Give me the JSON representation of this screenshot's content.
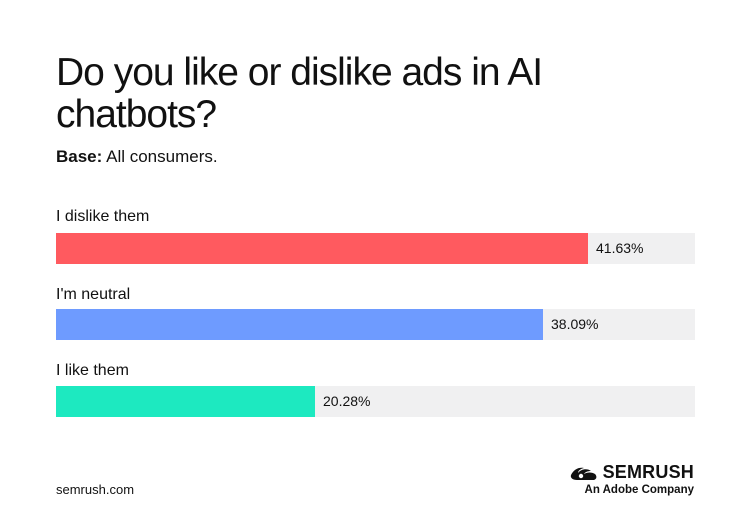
{
  "title": "Do you like or dislike ads in AI chatbots?",
  "base": {
    "label": "Base:",
    "text": "All consumers."
  },
  "colors": {
    "dislike": "#ff5a5f",
    "neutral": "#6e9bff",
    "like": "#1de9c0",
    "track": "#f0f0f1"
  },
  "chart_data": {
    "type": "bar",
    "orientation": "horizontal",
    "categories": [
      "I dislike them",
      "I'm neutral",
      "I like them"
    ],
    "values": [
      41.63,
      38.09,
      20.28
    ],
    "value_labels": [
      "41.63%",
      "38.09%",
      "20.28%"
    ],
    "unit": "%",
    "xlim": [
      0,
      50
    ],
    "grid": false
  },
  "footer": {
    "url": "semrush.com"
  },
  "brand": {
    "name": "SEMRUSH",
    "tagline": "An Adobe Company",
    "icon": "semrush-fire-icon"
  }
}
